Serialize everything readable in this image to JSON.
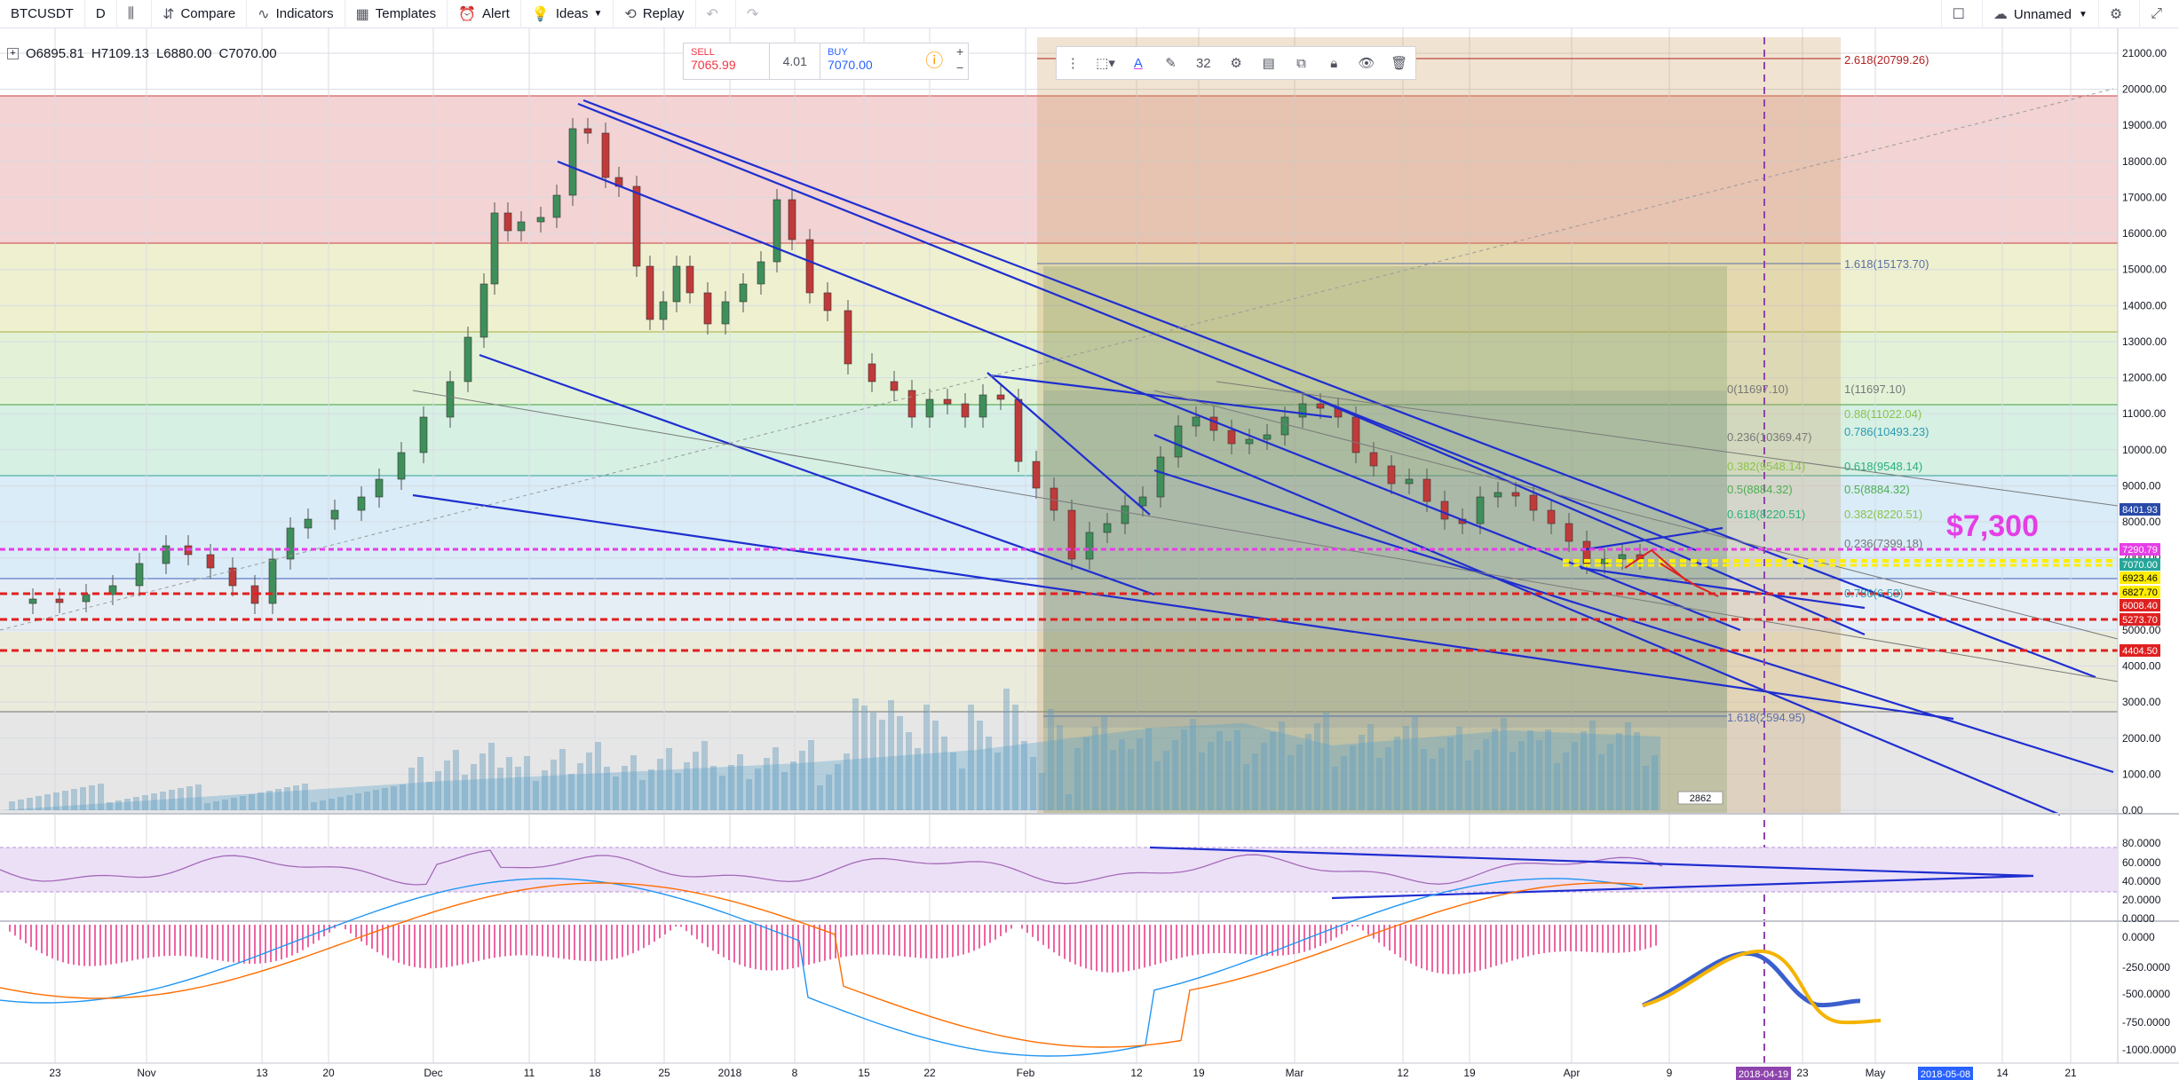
{
  "toolbar": {
    "symbol": "BTCUSDT",
    "interval": "D",
    "compare": "Compare",
    "indicators": "Indicators",
    "templates": "Templates",
    "alert": "Alert",
    "ideas": "Ideas",
    "replay": "Replay",
    "layout_name": "Unnamed"
  },
  "ohlc": {
    "open": "O6895.81",
    "high": "H7109.13",
    "low": "L6880.00",
    "close": "C7070.00"
  },
  "trade_panel": {
    "sell_label": "SELL",
    "sell_price": "7065.99",
    "spread": "4.01",
    "buy_label": "BUY",
    "buy_price": "7070.00"
  },
  "drawing_toolbar": {
    "font_size": "32"
  },
  "price_axis": [
    "21000.00",
    "20000.00",
    "19000.00",
    "18000.00",
    "17000.00",
    "16000.00",
    "15000.00",
    "14000.00",
    "13000.00",
    "12000.00",
    "11000.00",
    "10000.00",
    "9000.00",
    "8000.00",
    "7000.00",
    "6000.00",
    "5000.00",
    "4000.00",
    "3000.00",
    "2000.00",
    "1000.00",
    "0.00"
  ],
  "price_badges": [
    {
      "text": "8401.93",
      "color": "#2a4aa8"
    },
    {
      "text": "7290.79",
      "color": "#e63ee6"
    },
    {
      "text": "7070.00",
      "color": "#26a69a"
    },
    {
      "text": "6923.46",
      "color": "#ffee00"
    },
    {
      "text": "6827.70",
      "color": "#ffee00"
    },
    {
      "text": "6008.40",
      "color": "#e02020"
    },
    {
      "text": "5273.70",
      "color": "#e02020"
    },
    {
      "text": "4404.50",
      "color": "#e02020"
    }
  ],
  "rsi_axis": [
    "80.0000",
    "60.0000",
    "40.0000",
    "20.0000",
    "0.0000"
  ],
  "macd_axis": [
    "0.0000",
    "-250.0000",
    "-500.0000",
    "-750.0000",
    "-1000.0000"
  ],
  "time_axis": [
    "23",
    "Nov",
    "13",
    "20",
    "Dec",
    "11",
    "18",
    "25",
    "2018",
    "8",
    "15",
    "22",
    "Feb",
    "12",
    "19",
    "Mar",
    "12",
    "19",
    "Apr",
    "9",
    "23",
    "May",
    "14",
    "21"
  ],
  "time_badges": [
    "2018-04-19",
    "2018-05-08"
  ],
  "fib_labels": [
    {
      "text": "2.618(20799.26)",
      "color": "#b22222"
    },
    {
      "text": "1.618(15173.70)",
      "color": "#5b6fa6"
    },
    {
      "text": "0(11697.10)",
      "color": "#787878"
    },
    {
      "text": "1(11697.10)",
      "color": "#787878"
    },
    {
      "text": "0.88(11022.04)",
      "color": "#8bc34a"
    },
    {
      "text": "0.786(10493.23)",
      "color": "#2b9bb0"
    },
    {
      "text": "0.236(10369.47)",
      "color": "#787878"
    },
    {
      "text": "0.382(9548.14)",
      "color": "#8bc34a"
    },
    {
      "text": "0.618(9548.14)",
      "color": "#2ab07a"
    },
    {
      "text": "0.5(8884.32)",
      "color": "#4caf50"
    },
    {
      "text": "0.5(8884.32)",
      "color": "#4caf50"
    },
    {
      "text": "0.618(8220.51)",
      "color": "#2ab07a"
    },
    {
      "text": "0.382(8220.51)",
      "color": "#8bc34a"
    },
    {
      "text": "0.236(7399.18)",
      "color": "#787878"
    },
    {
      "text": "0.786(6.53)",
      "color": "#2b9bb0"
    },
    {
      "text": "1.618(2594.95)",
      "color": "#5b6fa6"
    }
  ],
  "annotation_text": "$7,300",
  "annotation_color": "#e63ee6",
  "volume_label": "2862"
}
